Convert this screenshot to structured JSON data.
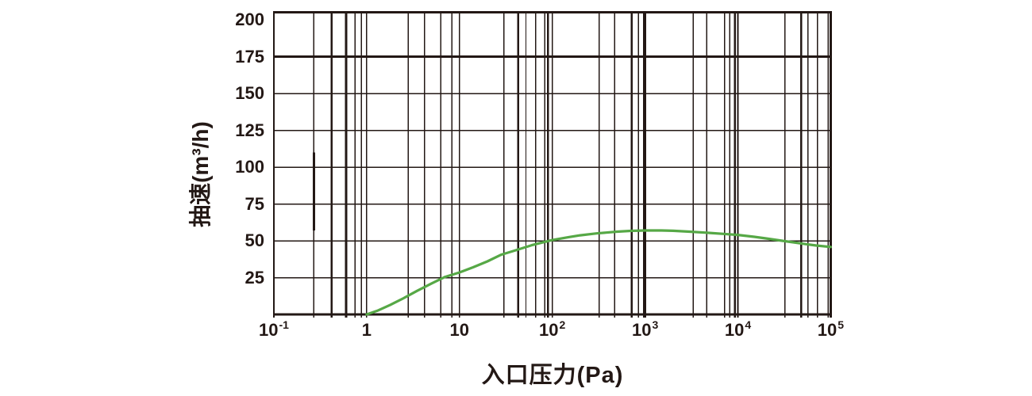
{
  "chart_data": {
    "type": "line",
    "title": "",
    "xlabel": "入口压力(Pa)",
    "ylabel": "抽速(m³/h)",
    "x_scale": "log",
    "xlim": [
      0.1,
      100000
    ],
    "ylim": [
      0,
      205
    ],
    "grid": "on",
    "legend": null,
    "x_major_ticks": [
      {
        "value": 0.1,
        "base": "10",
        "sup": "-1"
      },
      {
        "value": 1,
        "base": "1",
        "sup": ""
      },
      {
        "value": 10,
        "base": "10",
        "sup": ""
      },
      {
        "value": 100,
        "base": "10",
        "sup": "2"
      },
      {
        "value": 1000,
        "base": "10",
        "sup": "3"
      },
      {
        "value": 10000,
        "base": "10",
        "sup": "4"
      },
      {
        "value": 100000,
        "base": "10",
        "sup": "5"
      }
    ],
    "y_ticks": [
      25,
      50,
      75,
      100,
      125,
      150,
      175,
      200
    ],
    "y_gridlines": [
      {
        "v": 25,
        "w": 1.5
      },
      {
        "v": 50,
        "w": 1.5
      },
      {
        "v": 75,
        "w": 1.5
      },
      {
        "v": 100,
        "w": 1.5
      },
      {
        "v": 125,
        "w": 1.5
      },
      {
        "v": 150,
        "w": 1.5
      },
      {
        "v": 175,
        "w": 3
      }
    ],
    "x_gridlines": [
      {
        "v": 0.27,
        "w": 1.4
      },
      {
        "v": 0.42,
        "w": 2.6
      },
      {
        "v": 0.6,
        "w": 2.6
      },
      {
        "v": 0.75,
        "w": 1.4
      },
      {
        "v": 0.88,
        "w": 1.4
      },
      {
        "v": 1,
        "w": 1.6
      },
      {
        "v": 2.8,
        "w": 1.4
      },
      {
        "v": 4.2,
        "w": 1.4
      },
      {
        "v": 6.3,
        "w": 1.4
      },
      {
        "v": 8.3,
        "w": 1.4
      },
      {
        "v": 10,
        "w": 1.6
      },
      {
        "v": 30,
        "w": 1.4
      },
      {
        "v": 43,
        "w": 2.6
      },
      {
        "v": 52,
        "w": 1.4
      },
      {
        "v": 66,
        "w": 1.4
      },
      {
        "v": 83,
        "w": 1.4
      },
      {
        "v": 90,
        "w": 2.6
      },
      {
        "v": 100,
        "w": 1.6
      },
      {
        "v": 320,
        "w": 1.4
      },
      {
        "v": 470,
        "w": 1.4
      },
      {
        "v": 720,
        "w": 2.6
      },
      {
        "v": 850,
        "w": 1.4
      },
      {
        "v": 965,
        "w": 1.4
      },
      {
        "v": 1000,
        "w": 2.4
      },
      {
        "v": 3300,
        "w": 1.4
      },
      {
        "v": 4600,
        "w": 1.4
      },
      {
        "v": 7200,
        "w": 1.4
      },
      {
        "v": 8200,
        "w": 1.4
      },
      {
        "v": 9300,
        "w": 2.6
      },
      {
        "v": 10000,
        "w": 2.4
      },
      {
        "v": 32000,
        "w": 1.4
      },
      {
        "v": 48000,
        "w": 2.6
      },
      {
        "v": 57000,
        "w": 1.4
      },
      {
        "v": 72000,
        "w": 1.4
      },
      {
        "v": 94000,
        "w": 1.4
      }
    ],
    "partial_thick_segment": {
      "x": 0.27,
      "y_from": 57,
      "y_to": 110,
      "w": 3
    },
    "series": [
      {
        "id": "pumping-speed",
        "color": "#56a846",
        "stroke_width": 3.2,
        "points": [
          [
            1,
            0
          ],
          [
            1.3,
            2.5
          ],
          [
            1.8,
            6.5
          ],
          [
            2.5,
            11
          ],
          [
            3.5,
            16
          ],
          [
            5,
            21
          ],
          [
            7,
            25.5
          ],
          [
            10,
            28.5
          ],
          [
            14,
            32
          ],
          [
            20,
            36
          ],
          [
            28,
            40.5
          ],
          [
            40,
            43.5
          ],
          [
            60,
            47
          ],
          [
            100,
            50.5
          ],
          [
            150,
            52.5
          ],
          [
            200,
            53.7
          ],
          [
            300,
            55
          ],
          [
            500,
            56.2
          ],
          [
            700,
            56.7
          ],
          [
            1000,
            57
          ],
          [
            1500,
            57
          ],
          [
            2000,
            56.8
          ],
          [
            3000,
            56.2
          ],
          [
            5000,
            55.3
          ],
          [
            7000,
            54.7
          ],
          [
            10000,
            54
          ],
          [
            15000,
            52.7
          ],
          [
            20000,
            51.6
          ],
          [
            30000,
            50
          ],
          [
            50000,
            48
          ],
          [
            70000,
            46.8
          ],
          [
            100000,
            45.8
          ]
        ]
      }
    ]
  },
  "colors": {
    "ink": "#231815",
    "background": "#ffffff",
    "curve": "#56a846"
  }
}
